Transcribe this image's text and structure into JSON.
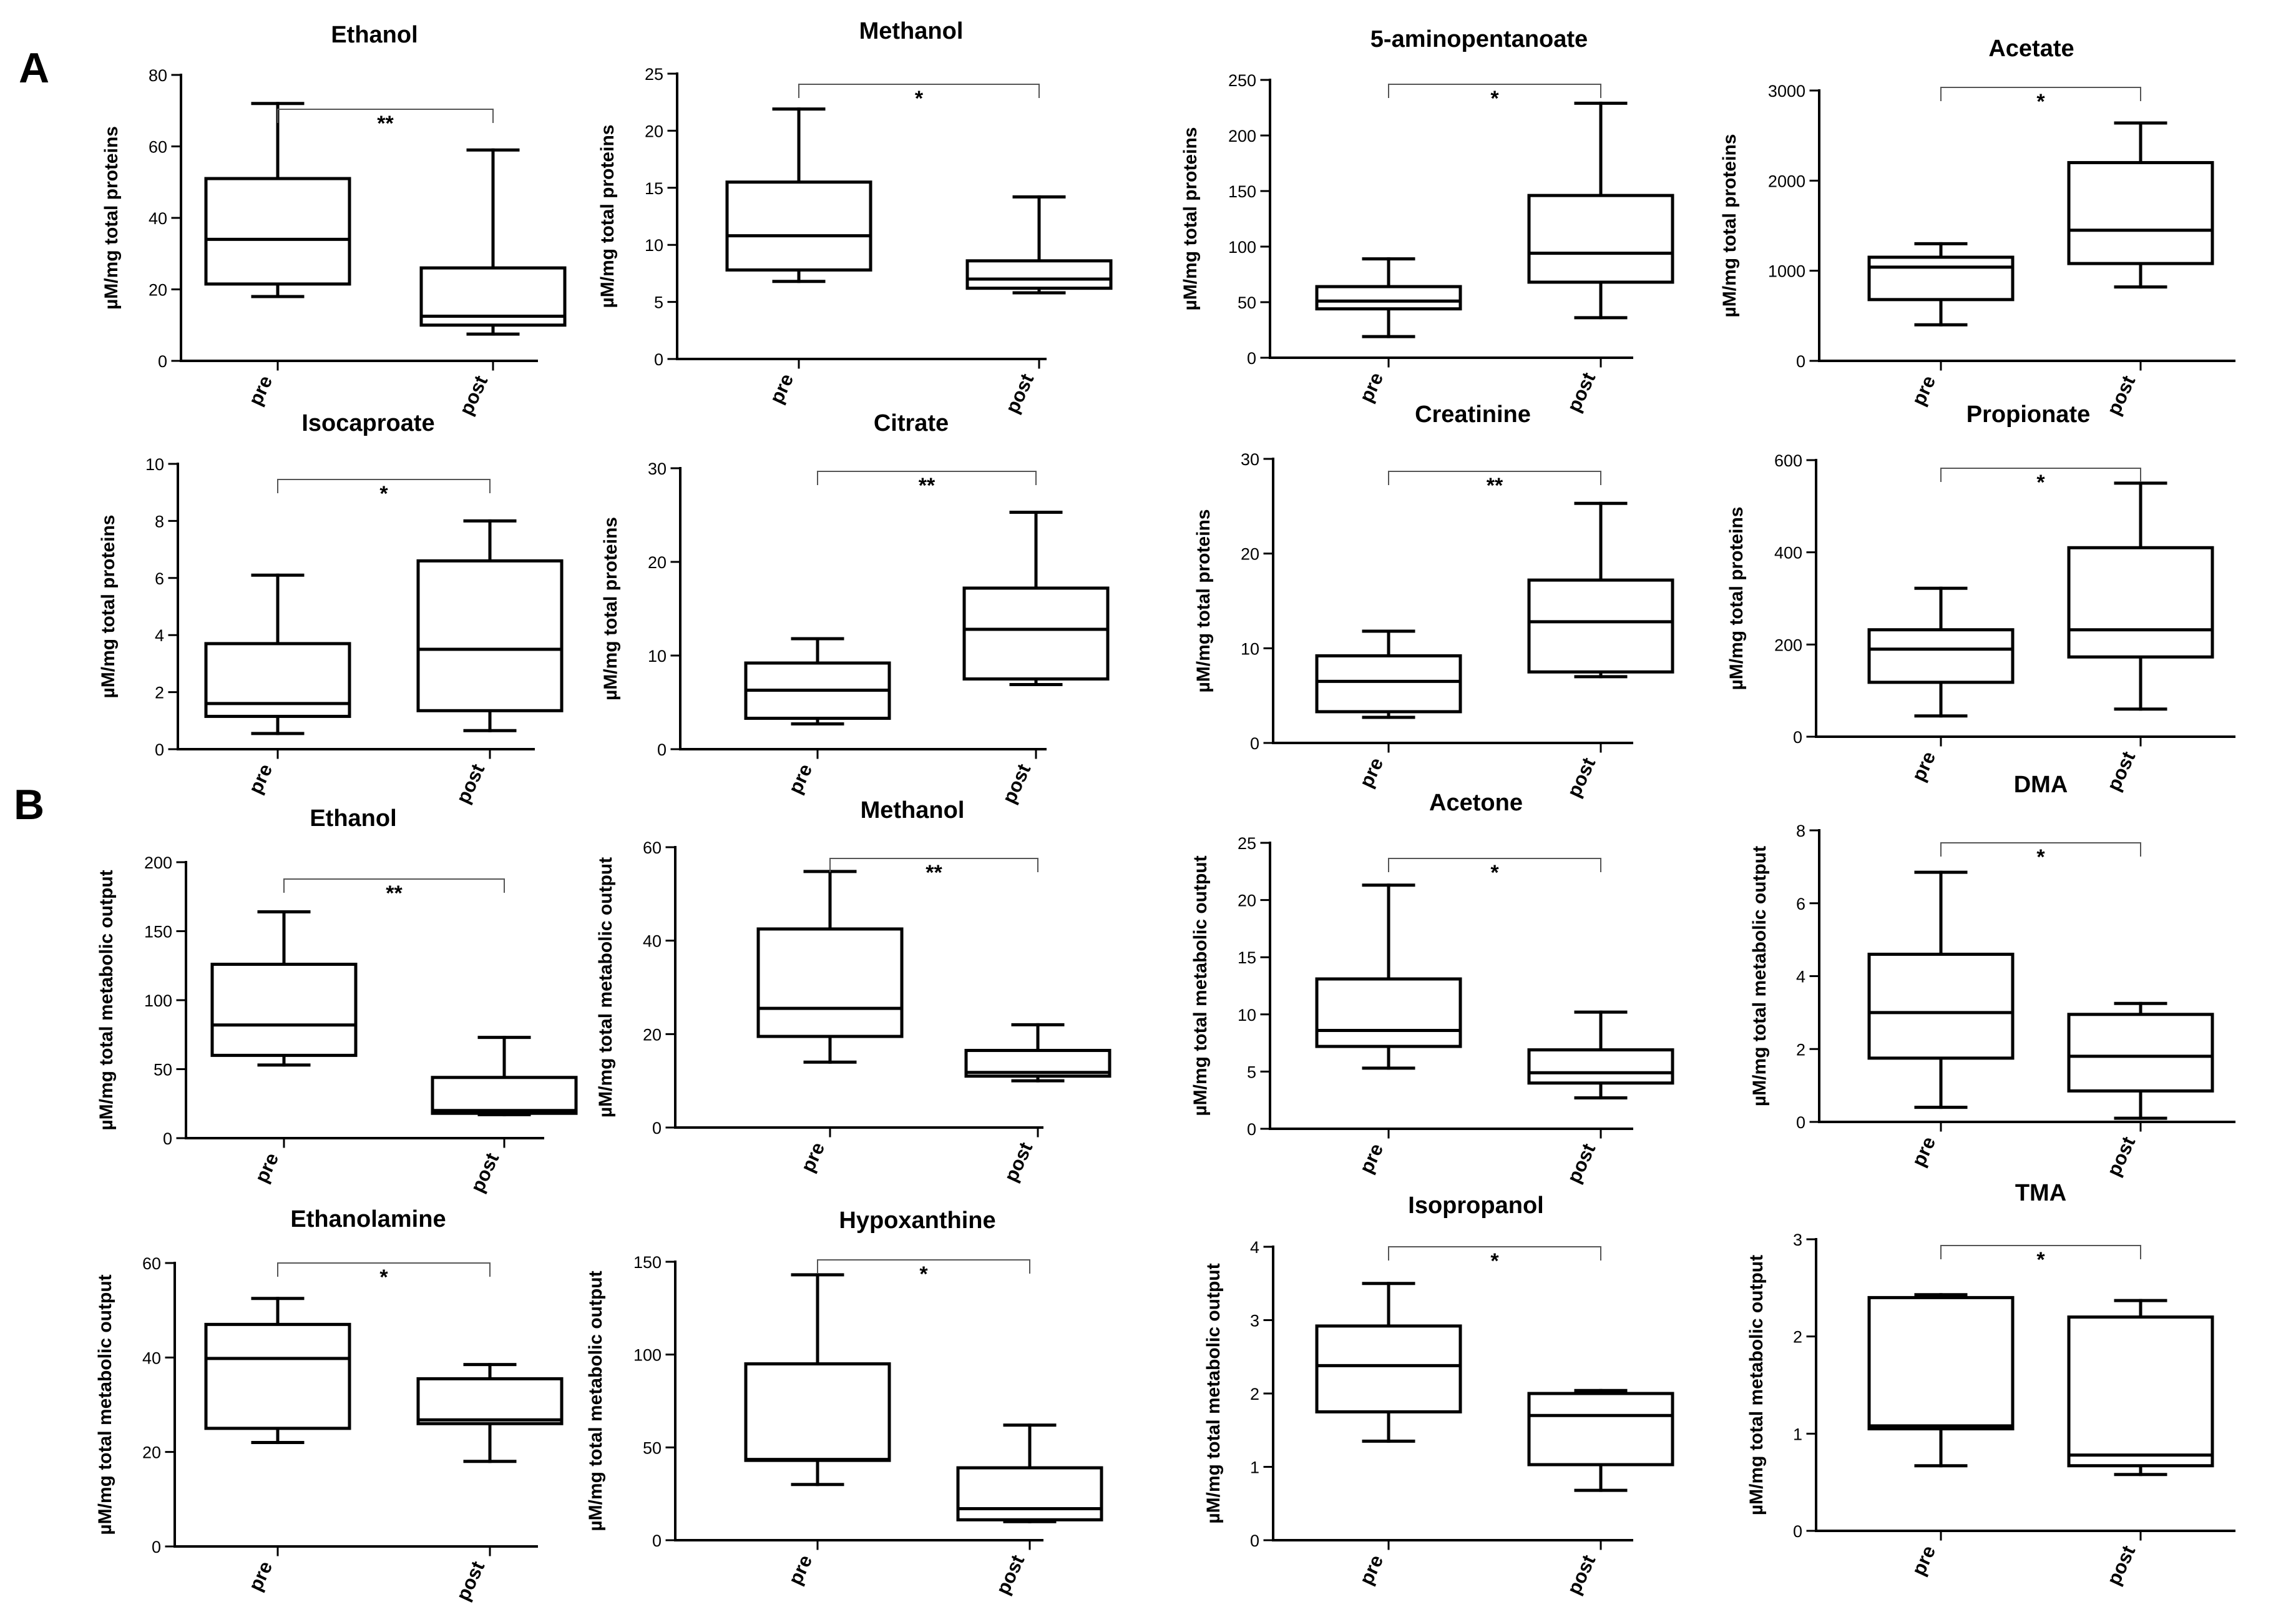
{
  "panels": [
    {
      "letter": "A"
    },
    {
      "letter": "B"
    }
  ],
  "chart_data": [
    {
      "type": "box",
      "panel": "A",
      "title": "Ethanol",
      "ylabel": "µM/mg total proteins",
      "ylim": [
        0,
        80
      ],
      "yticks": [
        0,
        20,
        40,
        60,
        80
      ],
      "categories": [
        "pre",
        "post"
      ],
      "significance": "**",
      "series": [
        {
          "name": "pre",
          "min": 18,
          "q1": 21.5,
          "median": 34,
          "q3": 51,
          "max": 72
        },
        {
          "name": "post",
          "min": 7.5,
          "q1": 10,
          "median": 12.5,
          "q3": 26,
          "max": 59
        }
      ]
    },
    {
      "type": "box",
      "panel": "A",
      "title": "Methanol",
      "ylabel": "µM/mg total proteins",
      "ylim": [
        0,
        25
      ],
      "yticks": [
        0,
        5,
        10,
        15,
        20,
        25
      ],
      "categories": [
        "pre",
        "post"
      ],
      "significance": "*",
      "series": [
        {
          "name": "pre",
          "min": 6.8,
          "q1": 7.8,
          "median": 10.8,
          "q3": 15.5,
          "max": 21.9
        },
        {
          "name": "post",
          "min": 5.8,
          "q1": 6.2,
          "median": 7,
          "q3": 8.6,
          "max": 14.2
        }
      ]
    },
    {
      "type": "box",
      "panel": "A",
      "title": "5-aminopentanoate",
      "ylabel": "µM/mg total proteins",
      "ylim": [
        0,
        250
      ],
      "yticks": [
        0,
        50,
        100,
        150,
        200,
        250
      ],
      "categories": [
        "pre",
        "post"
      ],
      "significance": "*",
      "series": [
        {
          "name": "pre",
          "min": 19,
          "q1": 44,
          "median": 51,
          "q3": 64,
          "max": 89
        },
        {
          "name": "post",
          "min": 36,
          "q1": 68,
          "median": 94,
          "q3": 146,
          "max": 229
        }
      ]
    },
    {
      "type": "box",
      "panel": "A",
      "title": "Acetate",
      "ylabel": "µM/mg total proteins",
      "ylim": [
        0,
        3000
      ],
      "yticks": [
        0,
        1000,
        2000,
        3000
      ],
      "categories": [
        "pre",
        "post"
      ],
      "significance": "*",
      "series": [
        {
          "name": "pre",
          "min": 400,
          "q1": 680,
          "median": 1040,
          "q3": 1150,
          "max": 1300
        },
        {
          "name": "post",
          "min": 820,
          "q1": 1080,
          "median": 1450,
          "q3": 2200,
          "max": 2640
        }
      ]
    },
    {
      "type": "box",
      "panel": "A",
      "title": "Isocaproate",
      "ylabel": "µM/mg total proteins",
      "ylim": [
        0,
        10
      ],
      "yticks": [
        0,
        2,
        4,
        6,
        8,
        10
      ],
      "categories": [
        "pre",
        "post"
      ],
      "significance": "*",
      "series": [
        {
          "name": "pre",
          "min": 0.55,
          "q1": 1.15,
          "median": 1.6,
          "q3": 3.7,
          "max": 6.1
        },
        {
          "name": "post",
          "min": 0.65,
          "q1": 1.35,
          "median": 3.5,
          "q3": 6.6,
          "max": 8
        }
      ]
    },
    {
      "type": "box",
      "panel": "A",
      "title": "Citrate",
      "ylabel": "µM/mg total proteins",
      "ylim": [
        0,
        30
      ],
      "yticks": [
        0,
        10,
        20,
        30
      ],
      "categories": [
        "pre",
        "post"
      ],
      "significance": "**",
      "series": [
        {
          "name": "pre",
          "min": 2.7,
          "q1": 3.3,
          "median": 6.3,
          "q3": 9.2,
          "max": 11.8
        },
        {
          "name": "post",
          "min": 6.9,
          "q1": 7.5,
          "median": 12.8,
          "q3": 17.2,
          "max": 25.3
        }
      ]
    },
    {
      "type": "box",
      "panel": "A",
      "title": "Creatinine",
      "ylabel": "µM/mg total proteins",
      "ylim": [
        0,
        30
      ],
      "yticks": [
        0,
        10,
        20,
        30
      ],
      "categories": [
        "pre",
        "post"
      ],
      "significance": "**",
      "series": [
        {
          "name": "pre",
          "min": 2.7,
          "q1": 3.3,
          "median": 6.5,
          "q3": 9.2,
          "max": 11.8
        },
        {
          "name": "post",
          "min": 7,
          "q1": 7.5,
          "median": 12.8,
          "q3": 17.2,
          "max": 25.3
        }
      ]
    },
    {
      "type": "box",
      "panel": "A",
      "title": "Propionate",
      "ylabel": "µM/mg total proteins",
      "ylim": [
        0,
        600
      ],
      "yticks": [
        0,
        200,
        400,
        600
      ],
      "categories": [
        "pre",
        "post"
      ],
      "significance": "*",
      "series": [
        {
          "name": "pre",
          "min": 45,
          "q1": 118,
          "median": 190,
          "q3": 232,
          "max": 322
        },
        {
          "name": "post",
          "min": 60,
          "q1": 173,
          "median": 232,
          "q3": 410,
          "max": 550
        }
      ]
    },
    {
      "type": "box",
      "panel": "B",
      "title": "Ethanol",
      "ylabel": "µM/mg total metabolic output",
      "ylim": [
        0,
        200
      ],
      "yticks": [
        0,
        50,
        100,
        150,
        200
      ],
      "categories": [
        "pre",
        "post"
      ],
      "significance": "**",
      "series": [
        {
          "name": "pre",
          "min": 53,
          "q1": 60,
          "median": 82,
          "q3": 126,
          "max": 164
        },
        {
          "name": "post",
          "min": 17,
          "q1": 18,
          "median": 20,
          "q3": 44,
          "max": 73
        }
      ]
    },
    {
      "type": "box",
      "panel": "B",
      "title": "Methanol",
      "ylabel": "µM/mg total metabolic output",
      "ylim": [
        0,
        60
      ],
      "yticks": [
        0,
        20,
        40,
        60
      ],
      "categories": [
        "pre",
        "post"
      ],
      "significance": "**",
      "series": [
        {
          "name": "pre",
          "min": 14,
          "q1": 19.5,
          "median": 25.5,
          "q3": 42.5,
          "max": 54.8
        },
        {
          "name": "post",
          "min": 10,
          "q1": 11,
          "median": 11.8,
          "q3": 16.5,
          "max": 22
        }
      ]
    },
    {
      "type": "box",
      "panel": "B",
      "title": "Acetone",
      "ylabel": "µM/mg total metabolic output",
      "ylim": [
        0,
        25
      ],
      "yticks": [
        0,
        5,
        10,
        15,
        20,
        25
      ],
      "categories": [
        "pre",
        "post"
      ],
      "significance": "*",
      "series": [
        {
          "name": "pre",
          "min": 5.3,
          "q1": 7.2,
          "median": 8.6,
          "q3": 13.1,
          "max": 21.3
        },
        {
          "name": "post",
          "min": 2.7,
          "q1": 4,
          "median": 4.9,
          "q3": 6.9,
          "max": 10.2
        }
      ]
    },
    {
      "type": "box",
      "panel": "B",
      "title": "DMA",
      "ylabel": "µM/mg total metabolic output",
      "ylim": [
        0,
        8
      ],
      "yticks": [
        0,
        2,
        4,
        6,
        8
      ],
      "categories": [
        "pre",
        "post"
      ],
      "significance": "*",
      "series": [
        {
          "name": "pre",
          "min": 0.4,
          "q1": 1.75,
          "median": 3,
          "q3": 4.6,
          "max": 6.85
        },
        {
          "name": "post",
          "min": 0.1,
          "q1": 0.85,
          "median": 1.8,
          "q3": 2.95,
          "max": 3.25
        }
      ]
    },
    {
      "type": "box",
      "panel": "B",
      "title": "Ethanolamine",
      "ylabel": "µM/mg total metabolic output",
      "ylim": [
        0,
        60
      ],
      "yticks": [
        0,
        20,
        40,
        60
      ],
      "categories": [
        "pre",
        "post"
      ],
      "significance": "*",
      "series": [
        {
          "name": "pre",
          "min": 22,
          "q1": 25,
          "median": 39.8,
          "q3": 47,
          "max": 52.5
        },
        {
          "name": "post",
          "min": 18,
          "q1": 26,
          "median": 26.8,
          "q3": 35.5,
          "max": 38.5
        }
      ]
    },
    {
      "type": "box",
      "panel": "B",
      "title": "Hypoxanthine",
      "ylabel": "µM/mg total metabolic output",
      "ylim": [
        0,
        150
      ],
      "yticks": [
        0,
        50,
        100,
        150
      ],
      "categories": [
        "pre",
        "post"
      ],
      "significance": "*",
      "series": [
        {
          "name": "pre",
          "min": 30,
          "q1": 43,
          "median": 43.5,
          "q3": 95,
          "max": 143
        },
        {
          "name": "post",
          "min": 10,
          "q1": 11,
          "median": 17,
          "q3": 39,
          "max": 62
        }
      ]
    },
    {
      "type": "box",
      "panel": "B",
      "title": "Isopropanol",
      "ylabel": "µM/mg total metabolic output",
      "ylim": [
        0,
        4
      ],
      "yticks": [
        0,
        1,
        2,
        3,
        4
      ],
      "categories": [
        "pre",
        "post"
      ],
      "significance": "*",
      "series": [
        {
          "name": "pre",
          "min": 1.35,
          "q1": 1.75,
          "median": 2.38,
          "q3": 2.92,
          "max": 3.5
        },
        {
          "name": "post",
          "min": 0.68,
          "q1": 1.03,
          "median": 1.7,
          "q3": 2,
          "max": 2.04
        }
      ]
    },
    {
      "type": "box",
      "panel": "B",
      "title": "TMA",
      "ylabel": "µM/mg total metabolic output",
      "ylim": [
        0,
        3
      ],
      "yticks": [
        0,
        1,
        2,
        3
      ],
      "categories": [
        "pre",
        "post"
      ],
      "significance": "*",
      "series": [
        {
          "name": "pre",
          "min": 0.67,
          "q1": 1.05,
          "median": 1.08,
          "q3": 2.4,
          "max": 2.43
        },
        {
          "name": "post",
          "min": 0.58,
          "q1": 0.67,
          "median": 0.78,
          "q3": 2.2,
          "max": 2.37
        }
      ]
    }
  ]
}
